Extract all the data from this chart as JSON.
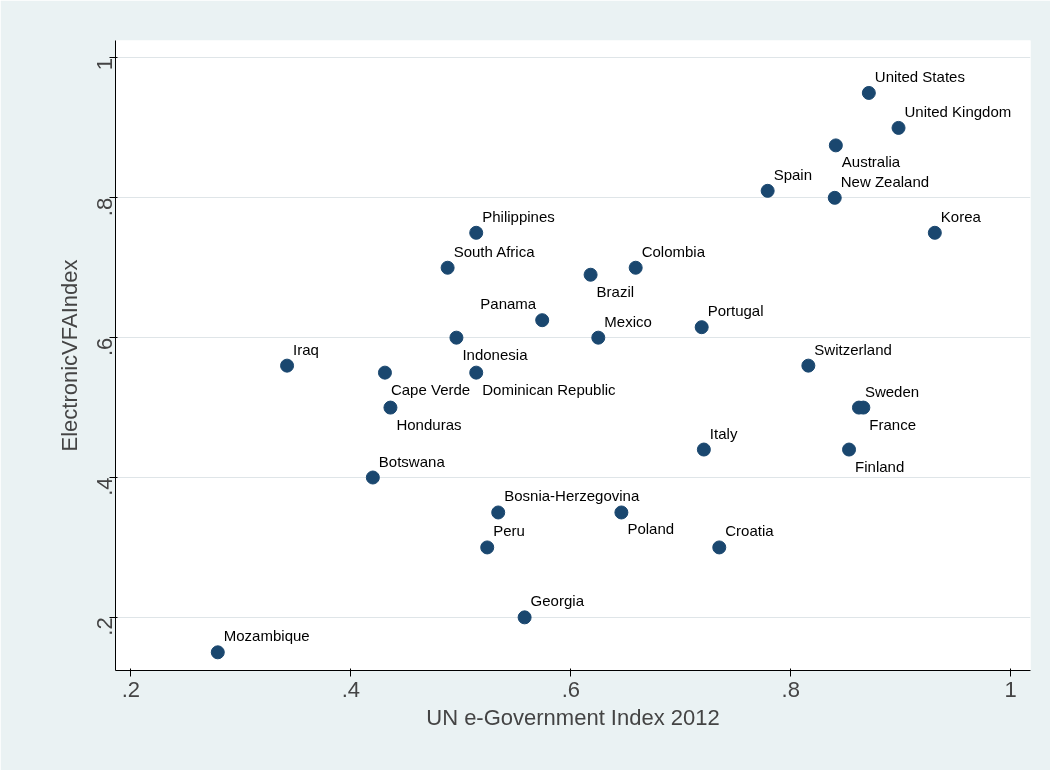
{
  "chart_data": {
    "type": "scatter",
    "xlabel": "UN e-Government Index 2012",
    "ylabel": "ElectronicVFAIndex",
    "marker": "circle",
    "grid": "y",
    "color": "#1a476f",
    "x": [
      0.871,
      0.898,
      0.841,
      0.779,
      0.84,
      0.931,
      0.514,
      0.488,
      0.618,
      0.659,
      0.574,
      0.496,
      0.625,
      0.719,
      0.342,
      0.431,
      0.514,
      0.816,
      0.436,
      0.862,
      0.866,
      0.721,
      0.853,
      0.42,
      0.534,
      0.646,
      0.524,
      0.735,
      0.558,
      0.279
    ],
    "values": [
      0.95,
      0.9,
      0.875,
      0.81,
      0.8,
      0.75,
      0.75,
      0.7,
      0.69,
      0.7,
      0.625,
      0.6,
      0.6,
      0.615,
      0.56,
      0.55,
      0.55,
      0.56,
      0.5,
      0.5,
      0.5,
      0.44,
      0.44,
      0.4,
      0.35,
      0.35,
      0.3,
      0.3,
      0.2,
      0.15
    ],
    "annotations": [
      {
        "text": "United States",
        "x": 0.871,
        "y": 0.95
      },
      {
        "text": "United Kingdom",
        "x": 0.898,
        "y": 0.9
      },
      {
        "text": "Australia",
        "x": 0.841,
        "y": 0.875
      },
      {
        "text": "Spain",
        "x": 0.779,
        "y": 0.81
      },
      {
        "text": "New Zealand",
        "x": 0.84,
        "y": 0.8
      },
      {
        "text": "Korea",
        "x": 0.931,
        "y": 0.75
      },
      {
        "text": "Philippines",
        "x": 0.514,
        "y": 0.75
      },
      {
        "text": "South Africa",
        "x": 0.488,
        "y": 0.7
      },
      {
        "text": "Brazil",
        "x": 0.618,
        "y": 0.69
      },
      {
        "text": "Colombia",
        "x": 0.659,
        "y": 0.7
      },
      {
        "text": "Panama",
        "x": 0.574,
        "y": 0.625
      },
      {
        "text": "Indonesia",
        "x": 0.496,
        "y": 0.6
      },
      {
        "text": "Mexico",
        "x": 0.625,
        "y": 0.6
      },
      {
        "text": "Portugal",
        "x": 0.719,
        "y": 0.615
      },
      {
        "text": "Iraq",
        "x": 0.342,
        "y": 0.56
      },
      {
        "text": "Cape Verde",
        "x": 0.431,
        "y": 0.55
      },
      {
        "text": "Dominican Republic",
        "x": 0.514,
        "y": 0.55
      },
      {
        "text": "Switzerland",
        "x": 0.816,
        "y": 0.56
      },
      {
        "text": "Honduras",
        "x": 0.436,
        "y": 0.5
      },
      {
        "text": "Sweden",
        "x": 0.862,
        "y": 0.5
      },
      {
        "text": "France",
        "x": 0.866,
        "y": 0.5
      },
      {
        "text": "Italy",
        "x": 0.721,
        "y": 0.44
      },
      {
        "text": "Finland",
        "x": 0.853,
        "y": 0.44
      },
      {
        "text": "Botswana",
        "x": 0.42,
        "y": 0.4
      },
      {
        "text": "Bosnia-Herzegovina",
        "x": 0.534,
        "y": 0.35
      },
      {
        "text": "Poland",
        "x": 0.646,
        "y": 0.35
      },
      {
        "text": "Peru",
        "x": 0.524,
        "y": 0.3
      },
      {
        "text": "Croatia",
        "x": 0.735,
        "y": 0.3
      },
      {
        "text": "Georgia",
        "x": 0.558,
        "y": 0.2
      },
      {
        "text": "Mozambique",
        "x": 0.279,
        "y": 0.15
      }
    ],
    "xlim": [
      0.186,
      1.018
    ],
    "ylim": [
      0.124,
      1.025
    ],
    "xticks": [
      {
        "value": 0.2,
        "label": ".2"
      },
      {
        "value": 0.4,
        "label": ".4"
      },
      {
        "value": 0.6,
        "label": ".6"
      },
      {
        "value": 0.8,
        "label": ".8"
      },
      1
    ],
    "yticks": [
      {
        "value": 0.2,
        "label": ".2"
      },
      {
        "value": 0.4,
        "label": ".4"
      },
      {
        "value": 0.6,
        "label": ".6"
      },
      {
        "value": 0.8,
        "label": ".8"
      },
      1
    ]
  }
}
